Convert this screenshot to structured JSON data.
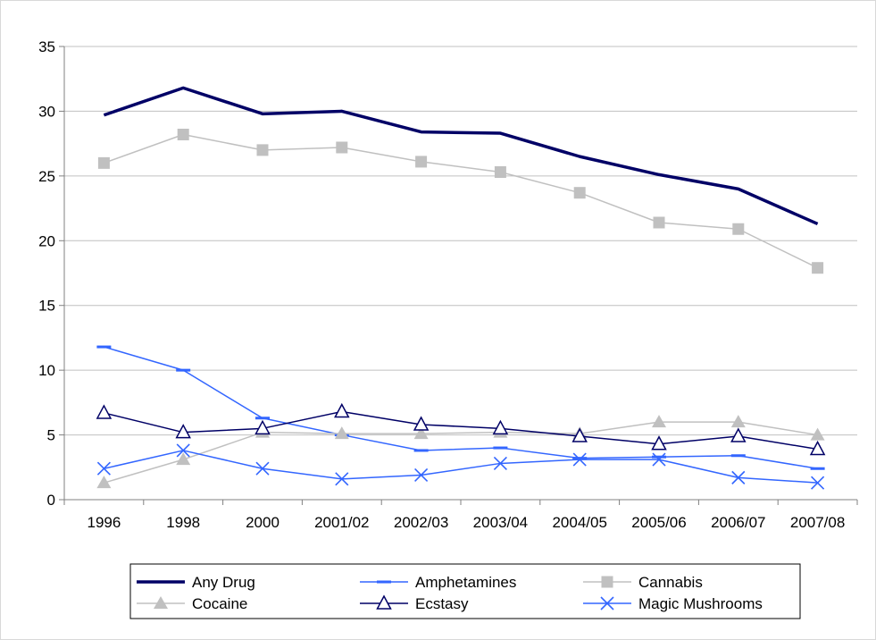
{
  "chart_data": {
    "type": "line",
    "title": "",
    "xlabel": "",
    "ylabel": "",
    "ylim": [
      0,
      35
    ],
    "yticks": [
      0,
      5,
      10,
      15,
      20,
      25,
      30,
      35
    ],
    "grid": true,
    "legend_position": "bottom",
    "categories": [
      "1996",
      "1998",
      "2000",
      "2001/02",
      "2002/03",
      "2003/04",
      "2004/05",
      "2005/06",
      "2006/07",
      "2007/08"
    ],
    "series": [
      {
        "name": "Any Drug",
        "color": "#000066",
        "marker": "none",
        "values": [
          29.7,
          31.8,
          29.8,
          30.0,
          28.4,
          28.3,
          26.5,
          25.1,
          24.0,
          21.3
        ]
      },
      {
        "name": "Amphetamines",
        "color": "#3366ff",
        "marker": "dash",
        "values": [
          11.8,
          10.0,
          6.3,
          5.0,
          3.8,
          4.0,
          3.2,
          3.3,
          3.4,
          2.4
        ]
      },
      {
        "name": "Cannabis",
        "color": "#c0c0c0",
        "marker": "square",
        "values": [
          26.0,
          28.2,
          27.0,
          27.2,
          26.1,
          25.3,
          23.7,
          21.4,
          20.9,
          17.9
        ]
      },
      {
        "name": "Cocaine",
        "color": "#c0c0c0",
        "marker": "triangle-filled",
        "values": [
          1.3,
          3.1,
          5.2,
          5.1,
          5.1,
          5.2,
          5.1,
          6.0,
          6.0,
          5.0
        ]
      },
      {
        "name": "Ecstasy",
        "color": "#000066",
        "marker": "triangle-open",
        "values": [
          6.7,
          5.2,
          5.5,
          6.8,
          5.8,
          5.5,
          4.9,
          4.3,
          4.9,
          3.9
        ]
      },
      {
        "name": "Magic Mushrooms",
        "color": "#3366ff",
        "marker": "x",
        "values": [
          2.4,
          3.8,
          2.4,
          1.6,
          1.9,
          2.8,
          3.1,
          3.1,
          1.7,
          1.3
        ]
      }
    ]
  }
}
